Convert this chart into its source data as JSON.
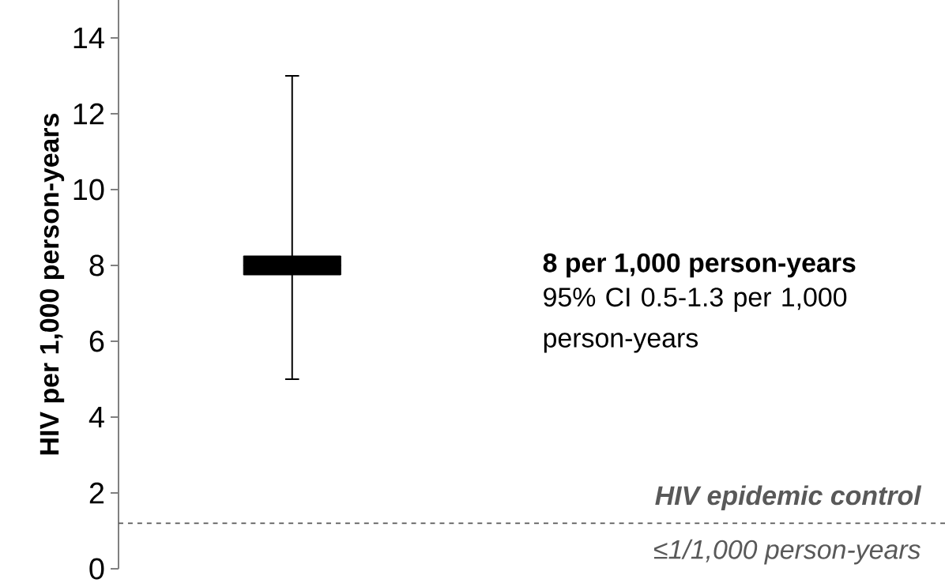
{
  "chart_data": {
    "type": "box",
    "ylabel": "HIV per 1,000 person-years",
    "categories": [
      null
    ],
    "series": [
      {
        "color": "#000000",
        "boxes": [
          {
            "low": 5,
            "q1": 7.75,
            "median": 8,
            "q3": 8.25,
            "high": 13
          }
        ]
      }
    ],
    "ylim": [
      0,
      15
    ],
    "yticks": [
      0,
      2,
      4,
      6,
      8,
      10,
      12,
      14
    ],
    "ref_lines": [
      {
        "axis": "y",
        "value": 1.2,
        "label": "HIV epidemic control",
        "color": "#595959",
        "line_style": "dashed"
      }
    ],
    "annotations": [
      "8 per 1,000 person-years",
      "95% CI 0.5-1.3 per 1,000 person-years",
      "≤1/1,000 person-years"
    ]
  }
}
